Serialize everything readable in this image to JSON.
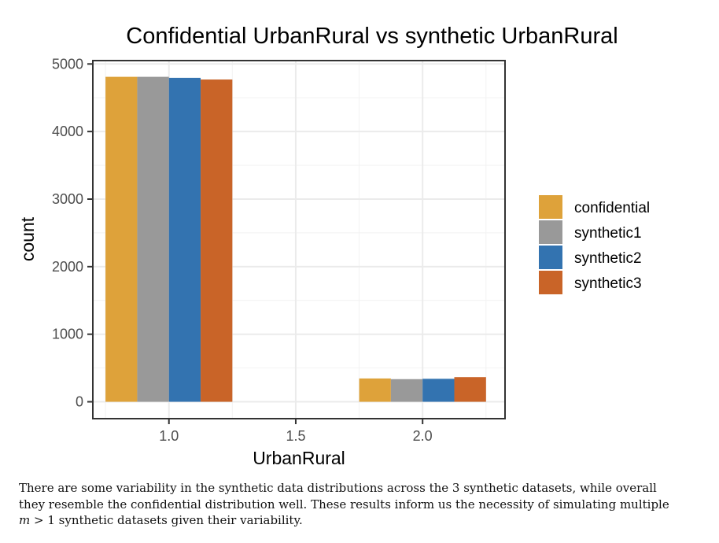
{
  "chart_data": {
    "type": "bar",
    "title": "Confidential UrbanRural vs synthetic UrbanRural",
    "xlabel": "UrbanRural",
    "ylabel": "count",
    "x_ticks": [
      "1.0",
      "1.5",
      "2.0"
    ],
    "y_ticks": [
      "0",
      "1000",
      "2000",
      "3000",
      "4000",
      "5000"
    ],
    "xlim": [
      0.7,
      2.325
    ],
    "ylim": [
      -250,
      5050
    ],
    "grid": true,
    "legend_position": "right",
    "categories": [
      1.0,
      1.5,
      2.0
    ],
    "series": [
      {
        "name": "confidential",
        "color": "#DEA23A",
        "values": [
          4810,
          0,
          345
        ]
      },
      {
        "name": "synthetic1",
        "color": "#999999",
        "values": [
          4810,
          0,
          335
        ]
      },
      {
        "name": "synthetic2",
        "color": "#3373B0",
        "values": [
          4795,
          0,
          340
        ]
      },
      {
        "name": "synthetic3",
        "color": "#C96428",
        "values": [
          4770,
          0,
          365
        ]
      }
    ]
  },
  "caption": {
    "line1": "There are some variability in the synthetic data distributions across the 3 synthetic datasets, while overall",
    "line2": "they resemble the confidential distribution well. These results inform us the necessity of simulating multiple",
    "math_m": "m",
    "math_rel": " > 1",
    "line3_rest": " synthetic datasets given their variability."
  }
}
